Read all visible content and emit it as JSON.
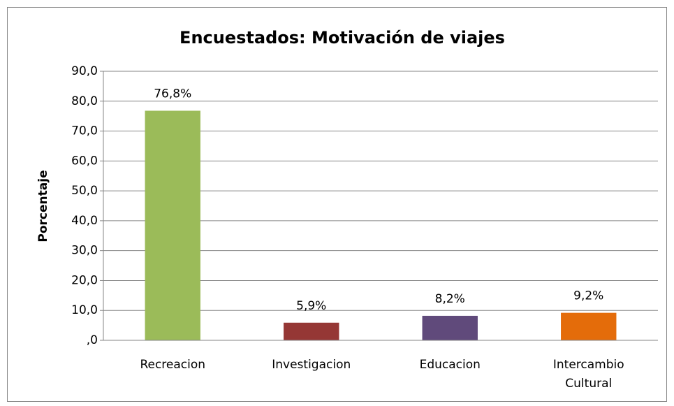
{
  "chart_data": {
    "type": "bar",
    "title": "Encuestados: Motivación de viajes",
    "y_label": "Porcentaje",
    "categories": [
      "Recreacion",
      "Investigacion",
      "Educacion",
      "Intercambio Cultural"
    ],
    "values": [
      76.8,
      5.9,
      8.2,
      9.2
    ],
    "value_labels": [
      "76,8%",
      "5,9%",
      "8,2%",
      "9,2%"
    ],
    "colors": [
      "#9bbb59",
      "#953735",
      "#604a7b",
      "#e46c0a"
    ],
    "ylim": [
      0,
      90
    ],
    "yticks": [
      {
        "value": 0,
        "label": ",0"
      },
      {
        "value": 10,
        "label": "10,0"
      },
      {
        "value": 20,
        "label": "20,0"
      },
      {
        "value": 30,
        "label": "30,0"
      },
      {
        "value": 40,
        "label": "40,0"
      },
      {
        "value": 50,
        "label": "50,0"
      },
      {
        "value": 60,
        "label": "60,0"
      },
      {
        "value": 70,
        "label": "70,0"
      },
      {
        "value": 80,
        "label": "80,0"
      },
      {
        "value": 90,
        "label": "90,0"
      }
    ],
    "grid": true
  }
}
